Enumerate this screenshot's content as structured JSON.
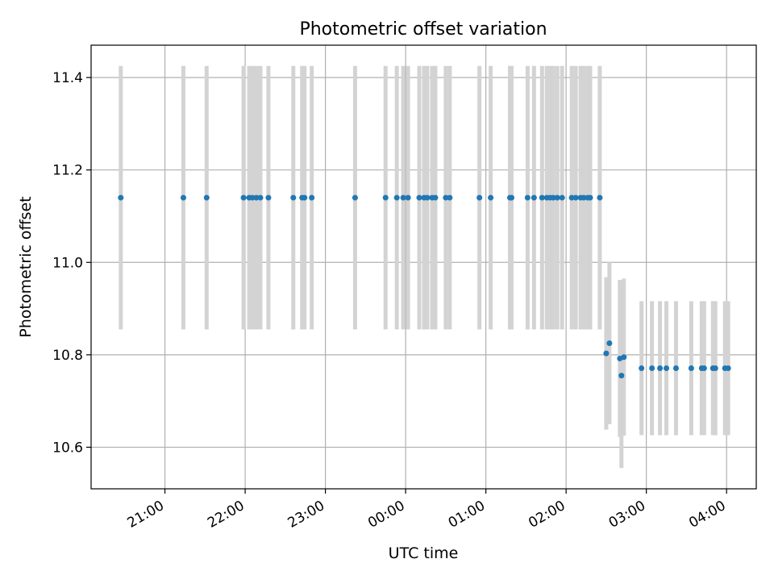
{
  "chart_data": {
    "type": "scatter",
    "title": "Photometric offset variation",
    "xlabel": "UTC time",
    "ylabel": "Photometric offset",
    "x_tick_labels": [
      "21:00",
      "22:00",
      "23:00",
      "00:00",
      "01:00",
      "02:00",
      "03:00",
      "04:00"
    ],
    "x_tick_hours": [
      21,
      22,
      23,
      24,
      25,
      26,
      27,
      28
    ],
    "xlim_hours": [
      20.08,
      28.37
    ],
    "y_ticks": [
      10.6,
      10.8,
      11.0,
      11.2,
      11.4
    ],
    "y_tick_labels": [
      "10.6",
      "10.8",
      "11.0",
      "11.2",
      "11.4"
    ],
    "ylim": [
      10.51,
      11.47
    ],
    "grid": true,
    "colors": {
      "points": "#1f77b4",
      "errorbars": "#d3d3d3",
      "grid": "#b0b0b0"
    },
    "series": [
      {
        "x_hours": [
          20.45,
          21.23,
          21.52,
          21.98,
          22.05,
          22.09,
          22.14,
          22.19,
          22.29,
          22.6,
          22.71,
          22.74,
          22.83,
          23.37,
          23.75,
          23.89,
          23.97,
          24.03,
          24.17,
          24.23,
          24.27,
          24.33,
          24.37,
          24.5,
          24.55,
          24.92,
          25.06,
          25.3,
          25.32,
          25.52,
          25.6,
          25.7,
          25.76,
          25.8,
          25.84,
          25.89,
          25.95,
          26.07,
          26.12,
          26.18,
          26.22,
          26.27,
          26.3,
          26.42,
          26.5,
          26.54,
          26.67,
          26.69,
          26.72,
          26.94,
          27.07,
          27.17,
          27.25,
          27.37,
          27.56,
          27.69,
          27.72,
          27.83,
          27.86,
          27.98,
          28.02
        ],
        "y": [
          11.14,
          11.14,
          11.14,
          11.14,
          11.14,
          11.14,
          11.14,
          11.14,
          11.14,
          11.14,
          11.14,
          11.14,
          11.14,
          11.14,
          11.14,
          11.14,
          11.14,
          11.14,
          11.14,
          11.14,
          11.14,
          11.14,
          11.14,
          11.14,
          11.14,
          11.14,
          11.14,
          11.14,
          11.14,
          11.14,
          11.14,
          11.14,
          11.14,
          11.14,
          11.14,
          11.14,
          11.14,
          11.14,
          11.14,
          11.14,
          11.14,
          11.14,
          11.14,
          11.14,
          10.803,
          10.825,
          10.792,
          10.755,
          10.795,
          10.771,
          10.771,
          10.771,
          10.771,
          10.771,
          10.771,
          10.771,
          10.771,
          10.771,
          10.771,
          10.771,
          10.771
        ],
        "yerr": [
          0.285,
          0.285,
          0.285,
          0.285,
          0.285,
          0.285,
          0.285,
          0.285,
          0.285,
          0.285,
          0.285,
          0.285,
          0.285,
          0.285,
          0.285,
          0.285,
          0.285,
          0.285,
          0.285,
          0.285,
          0.285,
          0.285,
          0.285,
          0.285,
          0.285,
          0.285,
          0.285,
          0.285,
          0.285,
          0.285,
          0.285,
          0.285,
          0.285,
          0.285,
          0.285,
          0.285,
          0.285,
          0.285,
          0.285,
          0.285,
          0.285,
          0.285,
          0.285,
          0.285,
          0.165,
          0.175,
          0.17,
          0.2,
          0.17,
          0.145,
          0.145,
          0.145,
          0.145,
          0.145,
          0.145,
          0.145,
          0.145,
          0.145,
          0.145,
          0.145,
          0.145
        ]
      }
    ]
  }
}
